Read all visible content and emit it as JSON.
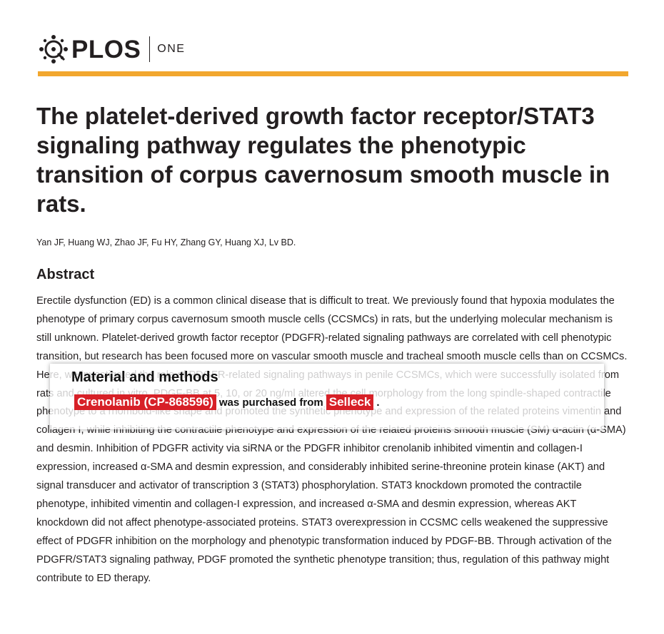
{
  "header": {
    "logo_primary": "PLOS",
    "logo_secondary": "ONE",
    "accent_color": "#f2a72e"
  },
  "article": {
    "title": "The platelet-derived growth factor receptor/STAT3 signaling pathway regulates the phenotypic transition of corpus cavernosum smooth muscle in rats.",
    "authors": "Yan JF, Huang WJ, Zhao JF, Fu HY, Zhang GY, Huang XJ, Lv BD.",
    "abstract_heading": "Abstract",
    "abstract_text": "Erectile dysfunction (ED) is a common clinical disease that is difficult to treat. We previously found that hypoxia modulates the phenotype of primary corpus cavernosum smooth muscle cells (CCSMCs) in rats, but the underlying molecular mechanism is still unknown. Platelet-derived growth factor receptor (PDGFR)-related signaling pathways are correlated with cell phenotypic transition, but research has been focused more on vascular smooth muscle and tracheal smooth muscle cells than on CCSMCs. Here, we investigated the role of PDGFR-related signaling pathways in penile CCSMCs, which were successfully isolated from rats and cultured in vitro. PDGF-BB at 5, 10, or 20 ng/ml altered the cell morphology from the long spindle-shaped contractile phenotype to a rhomboid-like shape and promoted the synthetic phenotype and expression of the related proteins vimentin and collagen I, while inhibiting the contractile phenotype and expression of the related proteins smooth muscle (SM) α-actin (α-SMA) and desmin. Inhibition of PDGFR activity via siRNA or the PDGFR inhibitor crenolanib inhibited vimentin and collagen-I expression, increased α-SMA and desmin expression, and considerably inhibited serine-threonine protein kinase (AKT) and signal transducer and activator of transcription 3 (STAT3) phosphorylation. STAT3 knockdown promoted the contractile phenotype, inhibited vimentin and collagen-I expression, and increased α-SMA and desmin expression, whereas AKT knockdown did not affect phenotype-associated proteins. STAT3 overexpression in CCSMC cells weakened the suppressive effect of PDGFR inhibition on the morphology and phenotypic transformation induced by PDGF-BB. Through activation of the PDGFR/STAT3 signaling pathway, PDGF promoted the synthetic phenotype transition; thus, regulation of this pathway might contribute to ED therapy."
  },
  "callout": {
    "heading": "Material and methods",
    "compound": "Crenolanib (CP-868596)",
    "middle_text": "was purchased from",
    "supplier": "Selleck",
    "end": ".",
    "highlight_color": "#d72027"
  }
}
